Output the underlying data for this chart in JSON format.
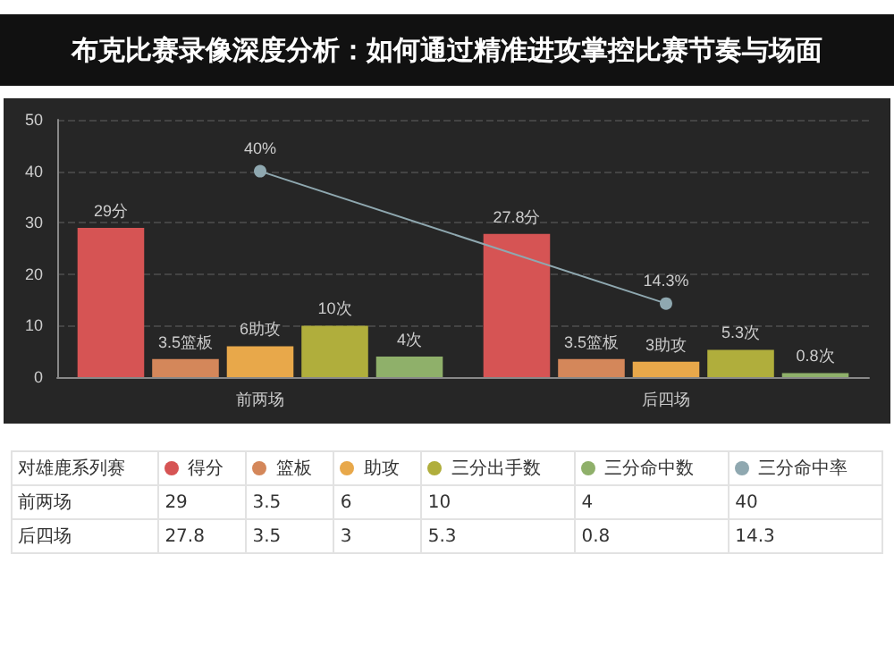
{
  "chart_data": {
    "type": "bar",
    "title": "布克比赛录像深度分析：如何通过精准进攻掌控比赛节奏与场面",
    "categories": [
      "前两场",
      "后四场"
    ],
    "legend_title": "对雄鹿系列赛",
    "series": [
      {
        "name": "得分",
        "color": "#d65454",
        "values": [
          29,
          27.8
        ],
        "value_labels": [
          "29分",
          "27.8分"
        ]
      },
      {
        "name": "篮板",
        "color": "#d4875a",
        "values": [
          3.5,
          3.5
        ],
        "value_labels": [
          "3.5篮板",
          "3.5篮板"
        ]
      },
      {
        "name": "助攻",
        "color": "#e8a84a",
        "values": [
          6,
          3
        ],
        "value_labels": [
          "6助攻",
          "3助攻"
        ]
      },
      {
        "name": "三分出手数",
        "color": "#b0ae3c",
        "values": [
          10,
          5.3
        ],
        "value_labels": [
          "10次",
          "5.3次"
        ]
      },
      {
        "name": "三分命中数",
        "color": "#8fb06a",
        "values": [
          4,
          0.8
        ],
        "value_labels": [
          "4次",
          "0.8次"
        ]
      },
      {
        "name": "三分命中率",
        "type": "line",
        "color": "#8fa8b0",
        "values": [
          40,
          14.3
        ],
        "value_labels": [
          "40%",
          "14.3%"
        ]
      }
    ],
    "ylim": [
      0,
      50
    ],
    "yticks": [
      0,
      10,
      20,
      30,
      40,
      50
    ],
    "annotations": [
      "29",
      "3.5",
      "6",
      "10",
      "4",
      "40",
      "27.8",
      "3.5",
      "3",
      "5.3",
      "0.8",
      "14.3"
    ],
    "grid": "y",
    "legend": "bottom",
    "marker": "circle"
  }
}
